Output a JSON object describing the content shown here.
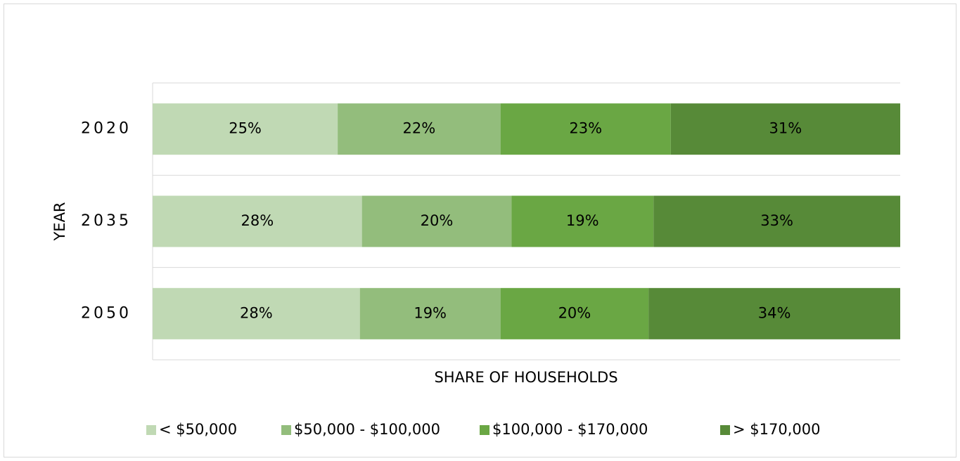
{
  "chart_data": {
    "type": "stacked-bar-100",
    "orientation": "horizontal",
    "y_axis_label": "YEAR",
    "x_axis_label": "SHARE OF HOUSEHOLDS",
    "categories": [
      "2020",
      "2035",
      "2050"
    ],
    "series": [
      {
        "name": "< $50,000",
        "color": "#c0d9b4",
        "values": [
          25,
          28,
          28
        ],
        "value_labels": [
          "25%",
          "28%",
          "28%"
        ]
      },
      {
        "name": "$50,000 - $100,000",
        "color": "#93bd7c",
        "values": [
          22,
          20,
          19
        ],
        "value_labels": [
          "22%",
          "20%",
          "19%"
        ]
      },
      {
        "name": "$100,000 - $170,000",
        "color": "#6aa744",
        "values": [
          23,
          19,
          20
        ],
        "value_labels": [
          "23%",
          "19%",
          "20%"
        ]
      },
      {
        "name": "> $170,000",
        "color": "#578a38",
        "values": [
          31,
          33,
          34
        ],
        "value_labels": [
          "31%",
          "33%",
          "34%"
        ]
      }
    ],
    "legend": "bottom"
  }
}
